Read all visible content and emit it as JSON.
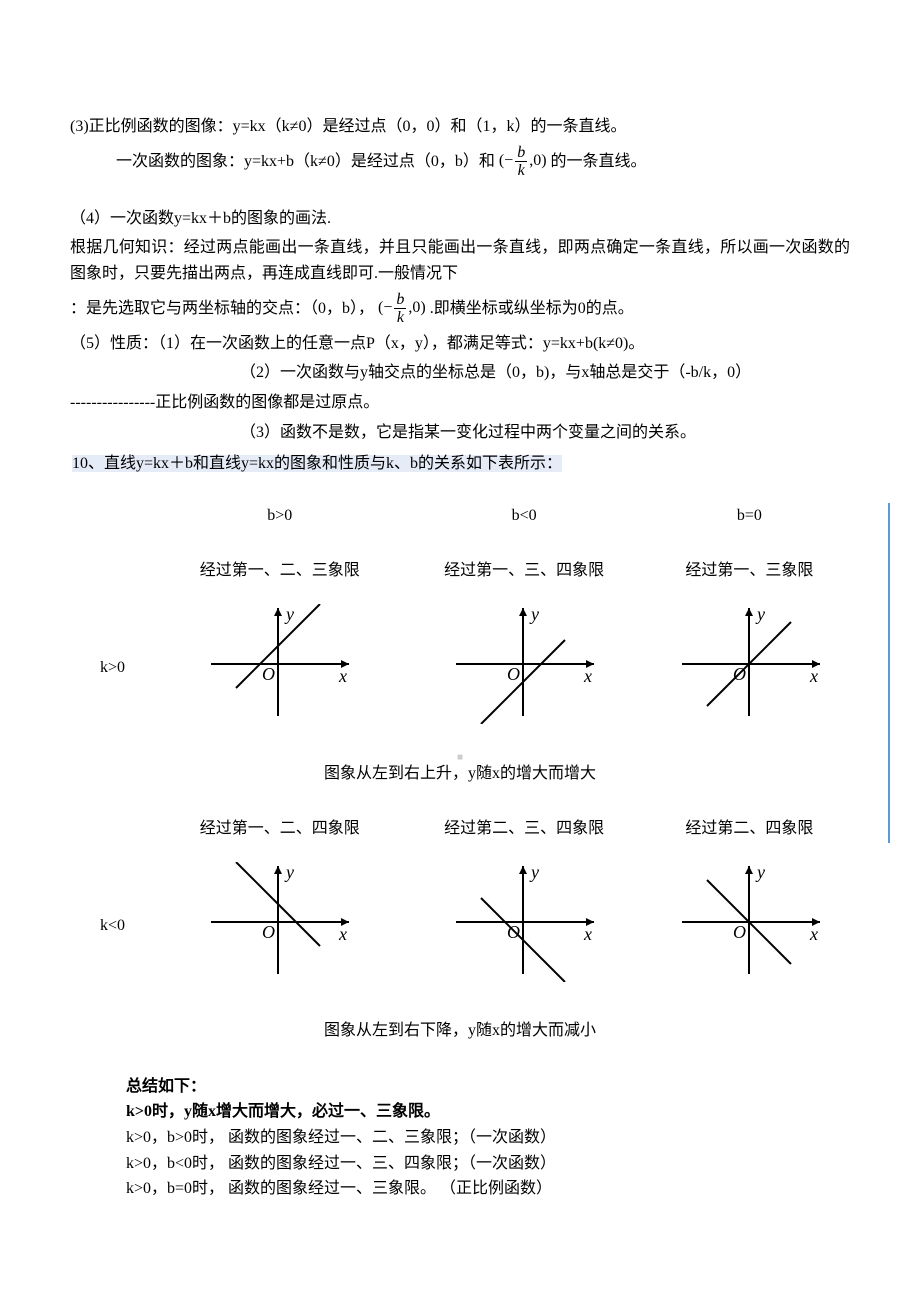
{
  "p3": "(3)正比例函数的图像：y=kx（k≠0）是经过点（0，0）和（1，k）的一条直线。",
  "p3b_prefix": "一次函数的图象：y=kx+b（k≠0）是经过点（0，b）和",
  "frac1_num": "b",
  "frac1_den": "k",
  "p3b_suffix": "的一条直线。",
  "p4": "（4）一次函数y=kx＋b的图象的画法.",
  "p4a": "根据几何知识：经过两点能画出一条直线，并且只能画出一条直线，即两点确定一条直线，所以画一次函数的图象时，只要先描出两点，再连成直线即可.一般情况下",
  "p4b_prefix": "：是先选取它与两坐标轴的交点：（0，b），",
  "p4b_suffix": ".即横坐标或纵坐标为0的点。",
  "p5_1": "（5）性质：（1）在一次函数上的任意一点P（x，y），都满足等式：y=kx+b(k≠0)。",
  "p5_2": "（2）一次函数与y轴交点的坐标总是（0，b)，与x轴总是交于（-b/k，0）",
  "p5_3": "----------------正比例函数的图像都是过原点。",
  "p5_4": "（3）函数不是数，它是指某一变化过程中两个变量之间的关系。",
  "p10": "10、直线y=kx＋b和直线y=kx的图象和性质与k、b的关系如下表所示：",
  "headers": {
    "b_pos": "b>0",
    "b_neg": "b<0",
    "b_zero": "b=0"
  },
  "k_pos_label": "k>0",
  "k_neg_label": "k<0",
  "row1": {
    "c1": "经过第一、二、三象限",
    "c2": "经过第一、三、四象限",
    "c3": "经过第一、三象限"
  },
  "row1_summary": "图象从左到右上升，y随x的增大而增大",
  "row2": {
    "c1": "经过第一、二、四象限",
    "c2": "经过第二、三、四象限",
    "c3": "经过第二、四象限"
  },
  "row2_summary": "图象从左到右下降，y随x的增大而减小",
  "axis": {
    "x": "x",
    "y": "y",
    "o": "O"
  },
  "summary": {
    "title": "总结如下：",
    "l1": "k>0时，y随x增大而增大，必过一、三象限。",
    "l2": "k>0，b>0时，  函数的图象经过一、二、三象限；（一次函数）",
    "l3": "k>0，b<0时，  函数的图象经过一、三、四象限；（一次函数）",
    "l4": "k>0，b=0时，  函数的图象经过一、三象限。    （正比例函数）"
  },
  "chart_style": {
    "width": 150,
    "height": 120,
    "axis_color": "#000000",
    "line_color": "#000000",
    "line_width": 2,
    "label_font": "italic 18px Times New Roman"
  },
  "charts": {
    "kpos_bpos": {
      "slope": 1,
      "intercept": 18
    },
    "kpos_bneg": {
      "slope": 1,
      "intercept": -18
    },
    "kpos_bzero": {
      "slope": 1,
      "intercept": 0
    },
    "kneg_bpos": {
      "slope": -1,
      "intercept": 18
    },
    "kneg_bneg": {
      "slope": -1,
      "intercept": -18
    },
    "kneg_bzero": {
      "slope": -1,
      "intercept": 0
    }
  },
  "watermark": "■",
  "paren_open": "(−",
  "paren_mid": ",0)"
}
